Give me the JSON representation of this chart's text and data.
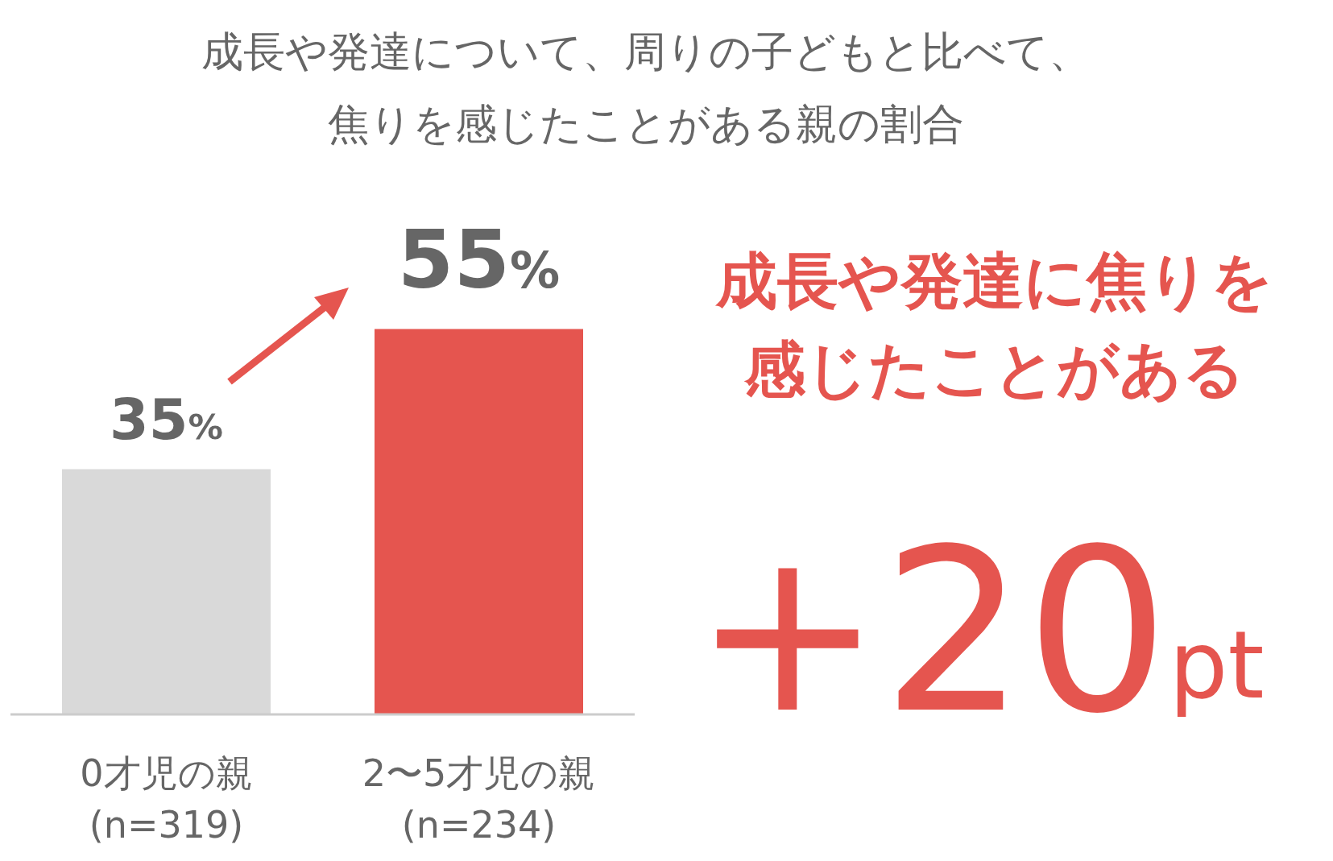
{
  "chart_data": {
    "type": "bar",
    "title": "成長や発達について、周りの子どもと比べて、焦りを感じたことがある親の割合",
    "categories": [
      "0才児の親\n(n=319)",
      "2〜5才児の親\n(n=234)"
    ],
    "values": [
      35,
      55
    ],
    "colors": [
      "#d9d9d9",
      "#e5554f"
    ],
    "value_labels": [
      "35%",
      "55%"
    ],
    "annotations": [
      "成長や発達に焦りを感じたことがある",
      "+20pt"
    ]
  }
}
